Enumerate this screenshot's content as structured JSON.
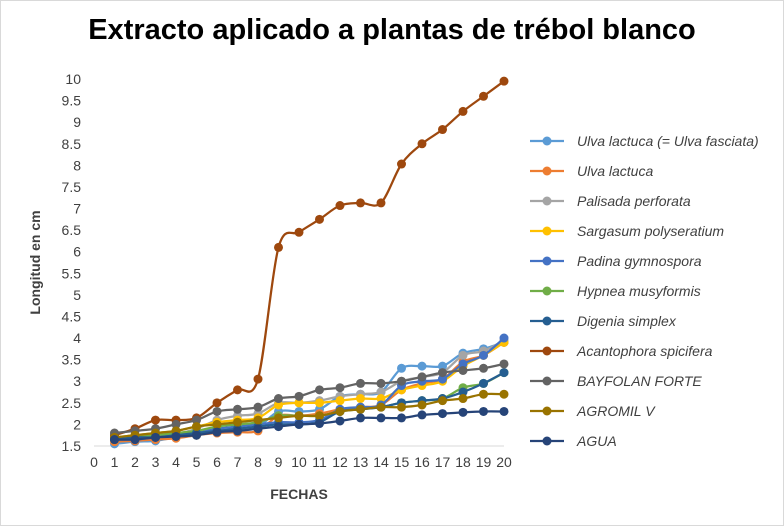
{
  "chart_data": {
    "type": "line",
    "title": "Extracto aplicado a plantas de trébol blanco",
    "xlabel": "FECHAS",
    "ylabel": "Longitud en cm",
    "xlim": [
      0,
      20
    ],
    "ylim": [
      1.5,
      10
    ],
    "x_ticks": [
      0,
      1,
      2,
      3,
      4,
      5,
      6,
      7,
      8,
      9,
      10,
      11,
      12,
      13,
      14,
      15,
      16,
      17,
      18,
      19,
      20
    ],
    "y_ticks": [
      "1.5",
      "2",
      "2.5",
      "3",
      "3.5",
      "4",
      "4.5",
      "5",
      "5.5",
      "6",
      "6.5",
      "7",
      "7.5",
      "8",
      "8.5",
      "9",
      "9.5",
      "10"
    ],
    "grid": false,
    "legend_position": "right",
    "x": [
      1,
      2,
      3,
      4,
      5,
      6,
      7,
      8,
      9,
      10,
      11,
      12,
      13,
      14,
      15,
      16,
      17,
      18,
      19,
      20
    ],
    "series": [
      {
        "name": "Ulva lactuca (= Ulva fasciata)",
        "color": "#5b9bd5",
        "values": [
          1.55,
          1.6,
          1.62,
          1.7,
          1.75,
          1.85,
          1.9,
          1.95,
          2.3,
          2.3,
          2.35,
          2.65,
          2.7,
          2.75,
          3.3,
          3.35,
          3.35,
          3.65,
          3.75,
          3.9
        ]
      },
      {
        "name": "Ulva lactuca",
        "color": "#ed7d31",
        "values": [
          1.6,
          1.62,
          1.65,
          1.68,
          1.75,
          1.8,
          1.82,
          1.85,
          2.2,
          2.2,
          2.25,
          2.35,
          2.4,
          2.45,
          2.8,
          2.95,
          3.05,
          3.45,
          3.6,
          3.9
        ]
      },
      {
        "name": "Palisada perforata",
        "color": "#a5a5a5",
        "values": [
          1.7,
          1.72,
          1.75,
          1.78,
          1.9,
          2.1,
          2.2,
          2.25,
          2.5,
          2.5,
          2.55,
          2.65,
          2.7,
          2.75,
          3.0,
          3.1,
          3.2,
          3.6,
          3.7,
          3.95
        ]
      },
      {
        "name": "Sargasum polyseratium",
        "color": "#ffc000",
        "values": [
          1.7,
          1.75,
          1.8,
          1.85,
          1.95,
          2.05,
          2.1,
          2.15,
          2.45,
          2.5,
          2.5,
          2.55,
          2.6,
          2.6,
          2.8,
          2.9,
          3.0,
          3.35,
          3.6,
          3.9
        ]
      },
      {
        "name": "Padina gymnospora",
        "color": "#4472c4",
        "values": [
          1.65,
          1.65,
          1.7,
          1.75,
          1.8,
          1.9,
          1.95,
          2.0,
          2.05,
          2.05,
          2.1,
          2.35,
          2.4,
          2.45,
          2.9,
          3.0,
          3.05,
          3.4,
          3.6,
          4.0
        ]
      },
      {
        "name": "Hypnea musyformis",
        "color": "#70ad47",
        "values": [
          1.65,
          1.7,
          1.75,
          1.8,
          1.85,
          1.95,
          2.0,
          2.05,
          2.2,
          2.2,
          2.2,
          2.3,
          2.35,
          2.4,
          2.5,
          2.55,
          2.6,
          2.85,
          2.95,
          3.2
        ]
      },
      {
        "name": "Digenia simplex",
        "color": "#255e91",
        "values": [
          1.65,
          1.7,
          1.7,
          1.75,
          1.8,
          1.85,
          1.9,
          1.95,
          2.0,
          2.0,
          2.05,
          2.3,
          2.35,
          2.4,
          2.5,
          2.55,
          2.6,
          2.75,
          2.95,
          3.2
        ]
      },
      {
        "name": "Acantophora spicifera",
        "color": "#9e480e",
        "values": [
          1.75,
          1.9,
          2.1,
          2.1,
          2.15,
          2.5,
          2.8,
          3.05,
          6.1,
          6.45,
          6.75,
          7.07,
          7.13,
          7.13,
          8.03,
          8.5,
          8.83,
          9.25,
          9.6,
          9.95
        ]
      },
      {
        "name": "BAYFOLAN FORTE",
        "color": "#636363",
        "values": [
          1.8,
          1.85,
          1.9,
          2.0,
          2.1,
          2.3,
          2.35,
          2.4,
          2.6,
          2.65,
          2.8,
          2.85,
          2.95,
          2.95,
          3.0,
          3.1,
          3.2,
          3.25,
          3.3,
          3.4
        ]
      },
      {
        "name": "AGROMIL V",
        "color": "#997300",
        "values": [
          1.7,
          1.75,
          1.8,
          1.85,
          1.95,
          2.0,
          2.05,
          2.1,
          2.15,
          2.2,
          2.2,
          2.3,
          2.35,
          2.4,
          2.4,
          2.45,
          2.55,
          2.6,
          2.7,
          2.7
        ]
      },
      {
        "name": "AGUA",
        "color": "#264478",
        "values": [
          1.65,
          1.65,
          1.7,
          1.72,
          1.75,
          1.82,
          1.85,
          1.9,
          1.95,
          2.0,
          2.02,
          2.08,
          2.15,
          2.15,
          2.15,
          2.22,
          2.25,
          2.28,
          2.3,
          2.3
        ]
      }
    ]
  }
}
